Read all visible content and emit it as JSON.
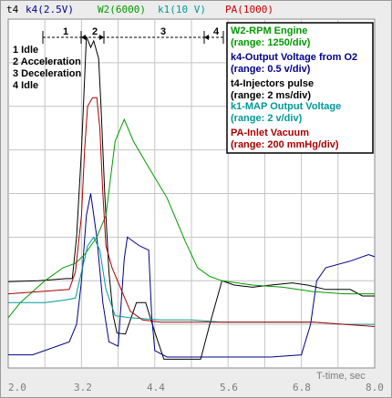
{
  "header": [
    {
      "text": "t4",
      "color": "#000000"
    },
    {
      "text": "k4(2.5V)",
      "color": "#00008b"
    },
    {
      "text": "W2(6000)",
      "color": "#009900"
    },
    {
      "text": "k1(10 V)",
      "color": "#009999"
    },
    {
      "text": "PA(1000)",
      "color": "#cc0000"
    }
  ],
  "phases": {
    "markers": [
      "1",
      "2",
      "3",
      "4"
    ],
    "list": [
      "1 Idle",
      "2 Acceleration",
      "3 Deceleration",
      "4 Idle"
    ]
  },
  "legend": [
    {
      "label": "W2-RPM Engine",
      "color": "#009900"
    },
    {
      "label": "(range: 1250/div)",
      "color": "#009900"
    },
    {
      "label": "k4-Output Voltage from O2",
      "color": "#00008b"
    },
    {
      "label": "(range: 0.5 v/div)",
      "color": "#00008b"
    },
    {
      "label": "t4-Injectors pulse",
      "color": "#000000"
    },
    {
      "label": "(range: 2 ms/div)",
      "color": "#000000"
    },
    {
      "label": "k1-MAP Output Voltage",
      "color": "#009999"
    },
    {
      "label": "(range: 2 v/div)",
      "color": "#009999"
    },
    {
      "label": "PA-Inlet Vacuum",
      "color": "#aa0000"
    },
    {
      "label": "(range: 200 mmHg/div)",
      "color": "#aa0000"
    }
  ],
  "x_axis_label": "T-time, sec",
  "chart_data": {
    "type": "line",
    "xlabel": "T-time, sec",
    "ylabel": "",
    "xlim": [
      2.0,
      8.0
    ],
    "ylim": [
      0,
      8
    ],
    "x_ticks": [
      "2.0",
      "3.2",
      "4.4",
      "5.6",
      "6.8",
      "8.0"
    ],
    "grid": true,
    "legend_position": "top-right",
    "series": [
      {
        "name": "t4-Injectors pulse",
        "color": "#000000",
        "points": [
          [
            2.0,
            1.98
          ],
          [
            2.5,
            2.0
          ],
          [
            2.95,
            2.05
          ],
          [
            3.05,
            2.05
          ],
          [
            3.12,
            3.0
          ],
          [
            3.2,
            5.0
          ],
          [
            3.28,
            7.6
          ],
          [
            3.35,
            7.35
          ],
          [
            3.4,
            7.5
          ],
          [
            3.48,
            7.1
          ],
          [
            3.52,
            6.0
          ],
          [
            3.58,
            4.0
          ],
          [
            3.65,
            2.2
          ],
          [
            3.72,
            1.2
          ],
          [
            3.78,
            0.8
          ],
          [
            3.92,
            0.78
          ],
          [
            4.1,
            1.5
          ],
          [
            4.25,
            1.5
          ],
          [
            4.4,
            0.82
          ],
          [
            4.55,
            0.2
          ],
          [
            4.8,
            0.2
          ],
          [
            5.15,
            0.2
          ],
          [
            5.3,
            1.0
          ],
          [
            5.5,
            2.0
          ],
          [
            5.7,
            1.9
          ],
          [
            6.0,
            1.85
          ],
          [
            6.3,
            1.9
          ],
          [
            6.65,
            1.95
          ],
          [
            6.9,
            1.9
          ],
          [
            7.2,
            1.8
          ],
          [
            7.6,
            1.8
          ],
          [
            7.8,
            1.65
          ],
          [
            8.0,
            1.65
          ]
        ]
      },
      {
        "name": "k4-Output Voltage from O2",
        "color": "#00008b",
        "points": [
          [
            2.0,
            0.3
          ],
          [
            2.4,
            0.3
          ],
          [
            2.8,
            0.5
          ],
          [
            3.0,
            0.6
          ],
          [
            3.12,
            1.0
          ],
          [
            3.2,
            2.0
          ],
          [
            3.28,
            3.5
          ],
          [
            3.35,
            4.0
          ],
          [
            3.45,
            3.0
          ],
          [
            3.55,
            1.5
          ],
          [
            3.65,
            0.6
          ],
          [
            3.8,
            0.5
          ],
          [
            3.9,
            2.5
          ],
          [
            3.95,
            3.0
          ],
          [
            4.15,
            2.8
          ],
          [
            4.3,
            2.7
          ],
          [
            4.35,
            1.2
          ],
          [
            4.4,
            0.4
          ],
          [
            4.6,
            0.25
          ],
          [
            5.0,
            0.25
          ],
          [
            5.5,
            0.25
          ],
          [
            6.0,
            0.25
          ],
          [
            6.3,
            0.25
          ],
          [
            6.8,
            0.3
          ],
          [
            6.95,
            1.0
          ],
          [
            7.05,
            2.0
          ],
          [
            7.2,
            2.3
          ],
          [
            7.6,
            2.45
          ],
          [
            7.9,
            2.6
          ],
          [
            8.0,
            2.55
          ]
        ]
      },
      {
        "name": "W2-RPM Engine",
        "color": "#009900",
        "points": [
          [
            2.0,
            1.15
          ],
          [
            2.2,
            1.5
          ],
          [
            2.6,
            2.0
          ],
          [
            2.9,
            2.3
          ],
          [
            3.1,
            2.4
          ],
          [
            3.25,
            2.6
          ],
          [
            3.45,
            3.0
          ],
          [
            3.6,
            3.5
          ],
          [
            3.75,
            5.2
          ],
          [
            3.9,
            5.7
          ],
          [
            4.05,
            5.2
          ],
          [
            4.3,
            4.6
          ],
          [
            4.6,
            3.9
          ],
          [
            4.9,
            2.9
          ],
          [
            5.1,
            2.3
          ],
          [
            5.3,
            2.1
          ],
          [
            5.5,
            2.0
          ],
          [
            6.0,
            1.9
          ],
          [
            6.5,
            1.85
          ],
          [
            7.0,
            1.75
          ],
          [
            7.5,
            1.7
          ],
          [
            8.0,
            1.7
          ]
        ]
      },
      {
        "name": "k1-MAP Output Voltage",
        "color": "#009999",
        "points": [
          [
            2.0,
            1.5
          ],
          [
            2.6,
            1.5
          ],
          [
            2.9,
            1.55
          ],
          [
            3.1,
            1.6
          ],
          [
            3.2,
            2.2
          ],
          [
            3.3,
            2.8
          ],
          [
            3.4,
            3.0
          ],
          [
            3.5,
            2.7
          ],
          [
            3.6,
            1.8
          ],
          [
            3.75,
            1.2
          ],
          [
            4.0,
            1.15
          ],
          [
            4.5,
            1.1
          ],
          [
            5.0,
            1.1
          ],
          [
            5.5,
            1.05
          ],
          [
            6.0,
            1.05
          ],
          [
            6.5,
            1.05
          ],
          [
            7.0,
            1.05
          ],
          [
            7.5,
            1.0
          ],
          [
            8.0,
            1.0
          ]
        ]
      },
      {
        "name": "PA-Inlet Vacuum",
        "color": "#aa0000",
        "points": [
          [
            2.0,
            1.7
          ],
          [
            2.5,
            1.75
          ],
          [
            3.0,
            1.8
          ],
          [
            3.1,
            2.2
          ],
          [
            3.2,
            3.5
          ],
          [
            3.25,
            5.0
          ],
          [
            3.3,
            6.0
          ],
          [
            3.38,
            6.2
          ],
          [
            3.45,
            6.2
          ],
          [
            3.5,
            5.5
          ],
          [
            3.55,
            4.0
          ],
          [
            3.6,
            2.8
          ],
          [
            3.7,
            2.3
          ],
          [
            3.85,
            1.8
          ],
          [
            4.0,
            1.3
          ],
          [
            4.2,
            1.1
          ],
          [
            4.5,
            1.05
          ],
          [
            5.0,
            1.05
          ],
          [
            5.5,
            1.05
          ],
          [
            6.0,
            1.05
          ],
          [
            6.5,
            1.05
          ],
          [
            7.0,
            1.05
          ],
          [
            7.5,
            1.0
          ],
          [
            8.0,
            0.95
          ]
        ]
      }
    ]
  }
}
